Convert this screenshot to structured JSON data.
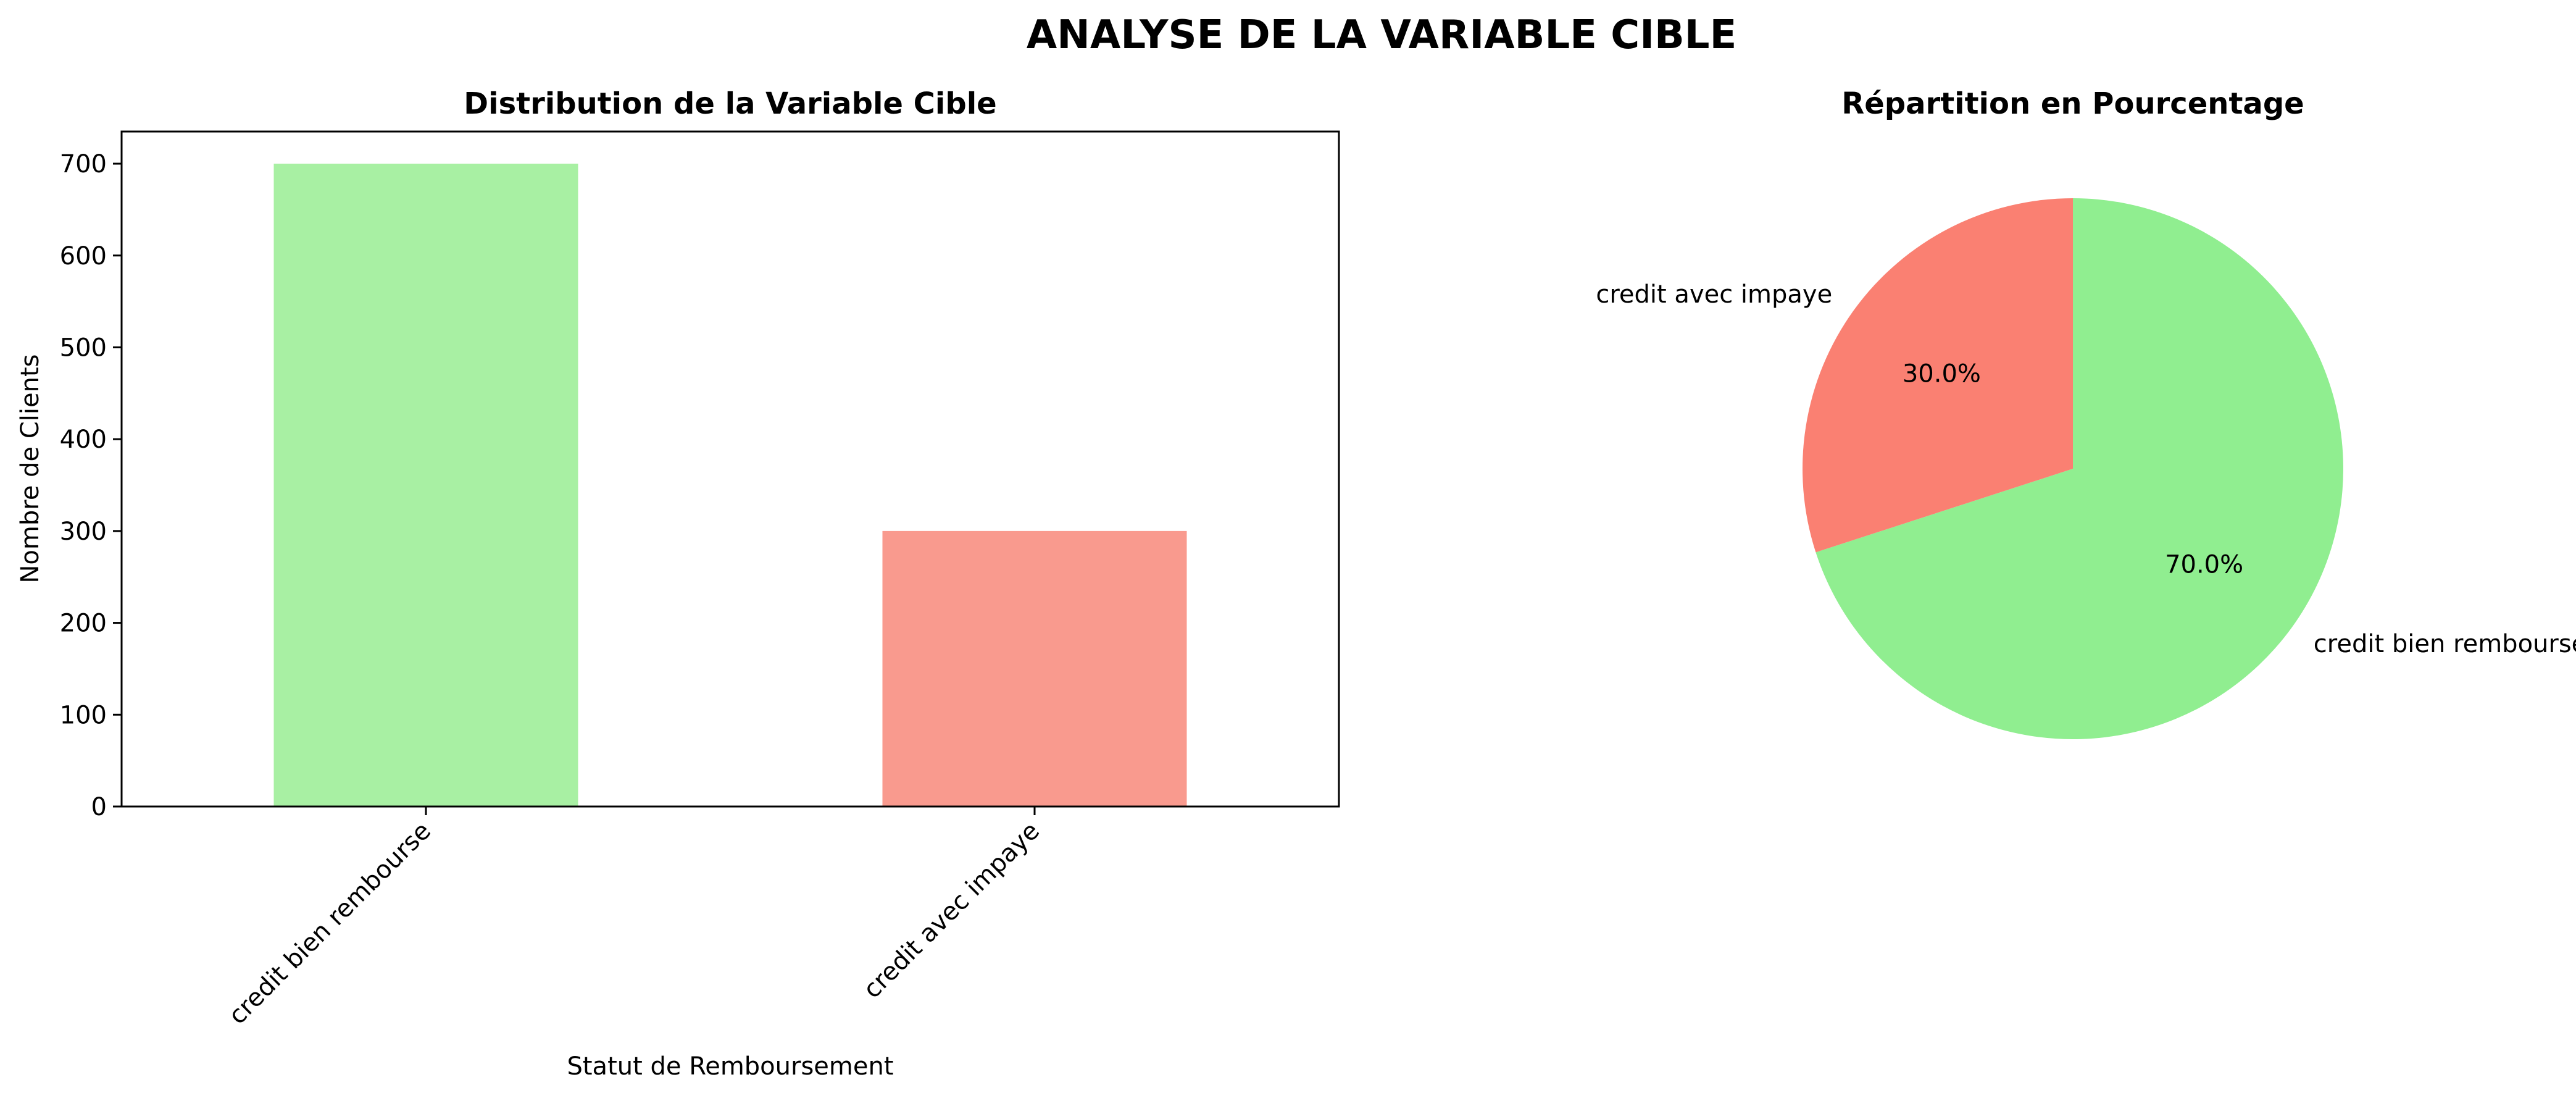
{
  "figure": {
    "title": "ANALYSE DE LA VARIABLE CIBLE"
  },
  "chart_data": [
    {
      "type": "bar",
      "title": "Distribution de la Variable Cible",
      "xlabel": "Statut de Remboursement",
      "ylabel": "Nombre de Clients",
      "categories": [
        "credit bien rembourse",
        "credit avec impaye"
      ],
      "values": [
        700,
        300
      ],
      "colors": [
        "#A8F0A3",
        "#F99A8E"
      ],
      "ylim": [
        0,
        735
      ],
      "yticks": [
        0,
        100,
        200,
        300,
        400,
        500,
        600,
        700
      ],
      "grid": false,
      "legend": "none"
    },
    {
      "type": "pie",
      "title": "Répartition en Pourcentage",
      "labels": [
        "credit bien rembourse",
        "credit avec impaye"
      ],
      "values": [
        70.0,
        30.0
      ],
      "pct_labels": [
        "70.0%",
        "30.0%"
      ],
      "colors": [
        "#90EE90",
        "#FA8072"
      ],
      "start_angle": 90,
      "direction": "clockwise"
    }
  ]
}
